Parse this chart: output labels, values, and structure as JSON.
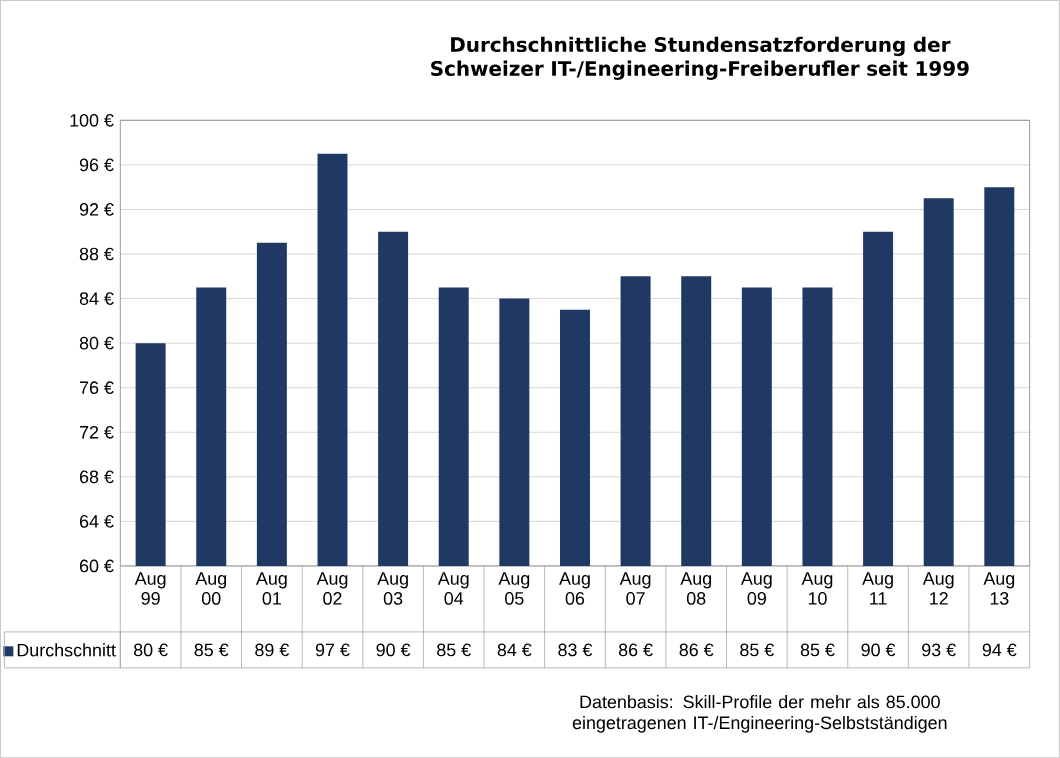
{
  "chart_data": {
    "type": "bar",
    "title": "Durchschnittliche Stundensatzforderung der Schweizer IT-/Engineering-Freiberufler seit 1999",
    "categories": [
      "Aug 99",
      "Aug 00",
      "Aug 01",
      "Aug 02",
      "Aug 03",
      "Aug 04",
      "Aug 05",
      "Aug 06",
      "Aug 07",
      "Aug 08",
      "Aug 09",
      "Aug 10",
      "Aug 11",
      "Aug 12",
      "Aug 13"
    ],
    "series": [
      {
        "name": "Durchschnitt",
        "color": "#1f3864",
        "values": [
          80,
          85,
          89,
          97,
          90,
          85,
          84,
          83,
          86,
          86,
          85,
          85,
          90,
          93,
          94
        ],
        "value_labels": [
          "80 €",
          "85 €",
          "89 €",
          "97 €",
          "90 €",
          "85 €",
          "84 €",
          "83 €",
          "86 €",
          "86 €",
          "85 €",
          "85 €",
          "90 €",
          "93 €",
          "94 €"
        ]
      }
    ],
    "ylim": [
      60,
      100
    ],
    "yticks": [
      {
        "value": 60,
        "label": "60 €"
      },
      {
        "value": 64,
        "label": "64 €"
      },
      {
        "value": 68,
        "label": "68 €"
      },
      {
        "value": 72,
        "label": "72 €"
      },
      {
        "value": 76,
        "label": "76 €"
      },
      {
        "value": 80,
        "label": "80 €"
      },
      {
        "value": 84,
        "label": "84 €"
      },
      {
        "value": 88,
        "label": "88 €"
      },
      {
        "value": 92,
        "label": "92 €"
      },
      {
        "value": 96,
        "label": "96 €"
      },
      {
        "value": 100,
        "label": "100 €"
      }
    ],
    "grid": "y",
    "legend": "bottom",
    "annotations": [
      "Datenbasis: Skill-Profile der mehr als 85.000 eingetragenen IT-/Engineering-Selbstständigen"
    ]
  }
}
